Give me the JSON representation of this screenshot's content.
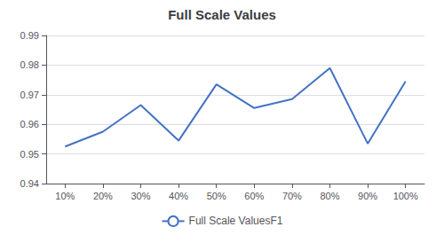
{
  "chart_data": {
    "type": "line",
    "title": "Full Scale Values",
    "x": [
      10,
      20,
      30,
      40,
      50,
      60,
      70,
      80,
      90,
      100
    ],
    "series": [
      {
        "name": "Full Scale ValuesF1",
        "color": "#4472C4",
        "values": [
          0.9525,
          0.9575,
          0.9665,
          0.9545,
          0.9735,
          0.9655,
          0.9685,
          0.979,
          0.9535,
          0.9745
        ]
      }
    ],
    "xlim": [
      5,
      105
    ],
    "xticks": [
      {
        "value": 10,
        "label": "10%"
      },
      {
        "value": 20,
        "label": "20%"
      },
      {
        "value": 30,
        "label": "30%"
      },
      {
        "value": 40,
        "label": "40%"
      },
      {
        "value": 50,
        "label": "50%"
      },
      {
        "value": 60,
        "label": "60%"
      },
      {
        "value": 70,
        "label": "70%"
      },
      {
        "value": 80,
        "label": "80%"
      },
      {
        "value": 90,
        "label": "90%"
      },
      {
        "value": 100,
        "label": "100%"
      }
    ],
    "ylim": [
      0.94,
      0.99
    ],
    "yticks": [
      0.94,
      0.95,
      0.96,
      0.97,
      0.98,
      0.99
    ],
    "grid": true,
    "legend": "bottom"
  }
}
